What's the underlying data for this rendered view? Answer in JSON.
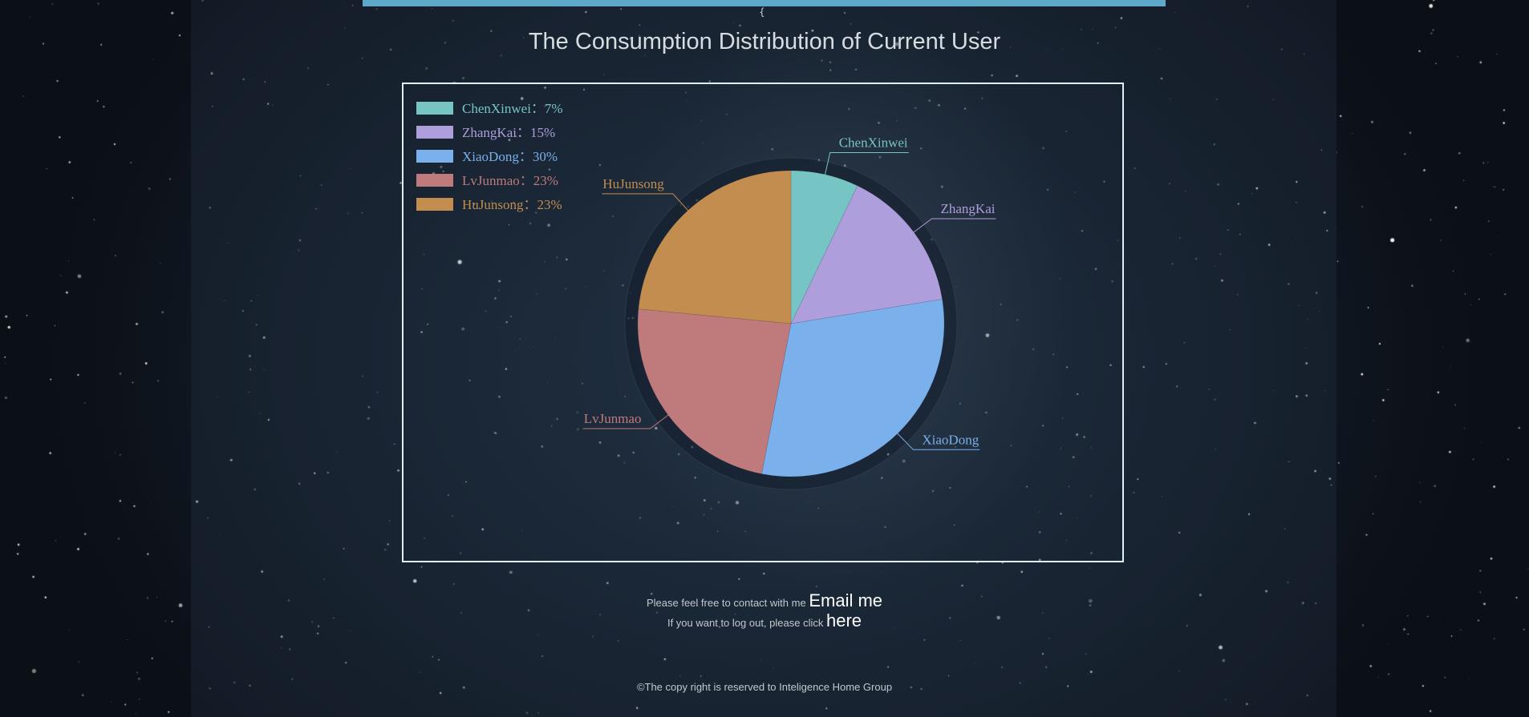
{
  "page": {
    "brace": "{",
    "title": "The Consumption Distribution of Current User"
  },
  "chart_data": {
    "type": "pie",
    "title": "The Consumption Distribution of Current User",
    "legend_position": "top-left",
    "legend_separator": "：",
    "slices": [
      {
        "name": "ChenXinwei",
        "value": 7,
        "color": "#76c4c4"
      },
      {
        "name": "ZhangKai",
        "value": 15,
        "color": "#ae9fdc"
      },
      {
        "name": "XiaoDong",
        "value": 30,
        "color": "#7ab0eb"
      },
      {
        "name": "LvJunmao",
        "value": 23,
        "color": "#bf7b7b"
      },
      {
        "name": "HuJunsong",
        "value": 23,
        "color": "#c28d4e"
      }
    ],
    "legend": [
      "ChenXinwei：7%",
      "ZhangKai：15%",
      "XiaoDong：30%",
      "LvJunmao：23%",
      "HuJunsong：23%"
    ]
  },
  "contact": {
    "line1_text": "Please feel free to contact with me",
    "line1_link": "Email me",
    "line2_text": "If you want to log out, please click",
    "line2_link": "here"
  },
  "footer": {
    "copyright": "©The copy right is reserved to Inteligence Home Group"
  },
  "colors": {
    "accent_bar": "#5ea9c9",
    "chart_border": "#dfeff7"
  }
}
